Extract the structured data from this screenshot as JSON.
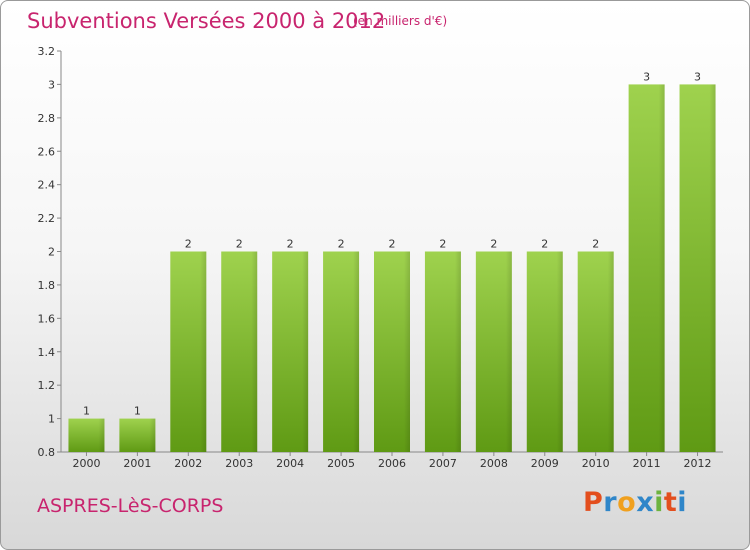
{
  "header": {
    "title": "Subventions Versées 2000 à 2012",
    "unit": "(en milliers d'€)"
  },
  "footer": {
    "commune": "ASPRES-LèS-CORPS",
    "logo": "Proxiti"
  },
  "colors": {
    "title": "#c8246e",
    "bar_light": "#9fd24e",
    "bar_dark": "#5f9a14",
    "logo_letters": [
      "#e34e1d",
      "#2f86c9",
      "#f0a01e",
      "#2f86c9",
      "#6db33f",
      "#e34e1d",
      "#2f86c9"
    ]
  },
  "chart_data": {
    "type": "bar",
    "title": "Subventions Versées 2000 à 2012",
    "subtitle": "(en milliers d'€)",
    "categories": [
      "2000",
      "2001",
      "2002",
      "2003",
      "2004",
      "2005",
      "2006",
      "2007",
      "2008",
      "2009",
      "2010",
      "2011",
      "2012"
    ],
    "values": [
      1,
      1,
      2,
      2,
      2,
      2,
      2,
      2,
      2,
      2,
      2,
      3,
      3
    ],
    "data_labels": [
      "1",
      "1",
      "2",
      "2",
      "2",
      "2",
      "2",
      "2",
      "2",
      "2",
      "2",
      "3",
      "3"
    ],
    "ylim": [
      0.8,
      3.2
    ],
    "yticks": [
      0.8,
      1,
      1.2,
      1.4,
      1.6,
      1.8,
      2,
      2.2,
      2.4,
      2.6,
      2.8,
      3,
      3.2
    ],
    "ytick_labels": [
      "0.8",
      "1",
      "1.2",
      "1.4",
      "1.6",
      "1.8",
      "2",
      "2.2",
      "2.4",
      "2.6",
      "2.8",
      "3",
      "3.2"
    ],
    "xlabel": "",
    "ylabel": "",
    "grid": false,
    "legend": "none"
  }
}
